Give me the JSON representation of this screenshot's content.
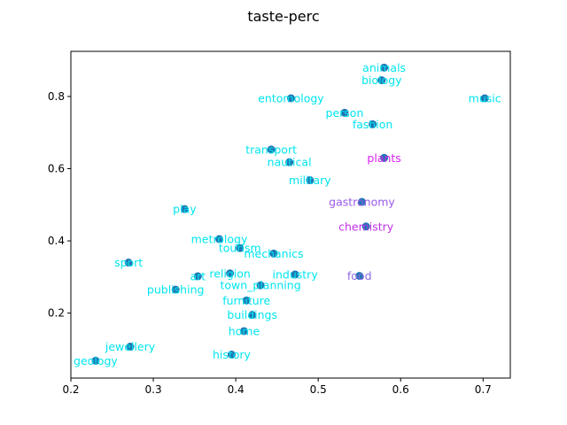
{
  "chart_data": {
    "type": "scatter",
    "title": "taste-perc",
    "xlabel": "",
    "ylabel": "",
    "xlim": [
      0.2,
      0.733
    ],
    "ylim": [
      0.02,
      0.925
    ],
    "xticks": [
      {
        "value": 0.2,
        "label": "0.2"
      },
      {
        "value": 0.3,
        "label": "0.3"
      },
      {
        "value": 0.4,
        "label": "0.4"
      },
      {
        "value": 0.5,
        "label": "0.5"
      },
      {
        "value": 0.6,
        "label": "0.6"
      },
      {
        "value": 0.7,
        "label": "0.7"
      }
    ],
    "yticks": [
      {
        "value": 0.2,
        "label": "0.2"
      },
      {
        "value": 0.4,
        "label": "0.4"
      },
      {
        "value": 0.6,
        "label": "0.6"
      },
      {
        "value": 0.8,
        "label": "0.8"
      }
    ],
    "grid": false,
    "marker_color": "#1f77b4",
    "points": [
      {
        "label": "animals",
        "x": 0.58,
        "y": 0.88,
        "color": "#00e5ee"
      },
      {
        "label": "biology",
        "x": 0.577,
        "y": 0.845,
        "color": "#00e5ee"
      },
      {
        "label": "music",
        "x": 0.702,
        "y": 0.795,
        "color": "#00e5ee"
      },
      {
        "label": "entomology",
        "x": 0.467,
        "y": 0.795,
        "color": "#00e5ee"
      },
      {
        "label": "person",
        "x": 0.532,
        "y": 0.755,
        "color": "#00e5ee"
      },
      {
        "label": "fashion",
        "x": 0.566,
        "y": 0.723,
        "color": "#00e5ee"
      },
      {
        "label": "transport",
        "x": 0.443,
        "y": 0.653,
        "color": "#00e5ee"
      },
      {
        "label": "plants",
        "x": 0.58,
        "y": 0.63,
        "color": "#d620f0"
      },
      {
        "label": "nautical",
        "x": 0.465,
        "y": 0.618,
        "color": "#00e5ee"
      },
      {
        "label": "military",
        "x": 0.49,
        "y": 0.568,
        "color": "#00e5ee"
      },
      {
        "label": "gastronomy",
        "x": 0.553,
        "y": 0.508,
        "color": "#9a5ae8"
      },
      {
        "label": "play",
        "x": 0.338,
        "y": 0.488,
        "color": "#00e5ee"
      },
      {
        "label": "chemistry",
        "x": 0.558,
        "y": 0.44,
        "color": "#c030e8"
      },
      {
        "label": "metrology",
        "x": 0.38,
        "y": 0.405,
        "color": "#00e5ee"
      },
      {
        "label": "tourism",
        "x": 0.405,
        "y": 0.38,
        "color": "#00e5ee"
      },
      {
        "label": "mechanics",
        "x": 0.446,
        "y": 0.365,
        "color": "#00e5ee"
      },
      {
        "label": "sport",
        "x": 0.27,
        "y": 0.34,
        "color": "#00e5ee"
      },
      {
        "label": "religion",
        "x": 0.393,
        "y": 0.31,
        "color": "#00e5ee"
      },
      {
        "label": "industry",
        "x": 0.472,
        "y": 0.307,
        "color": "#00e5ee"
      },
      {
        "label": "food",
        "x": 0.55,
        "y": 0.303,
        "color": "#8f6ae0"
      },
      {
        "label": "art",
        "x": 0.354,
        "y": 0.302,
        "color": "#00e5ee"
      },
      {
        "label": "town_planning",
        "x": 0.43,
        "y": 0.277,
        "color": "#00e5ee"
      },
      {
        "label": "publishing",
        "x": 0.327,
        "y": 0.265,
        "color": "#00e5ee"
      },
      {
        "label": "furniture",
        "x": 0.413,
        "y": 0.235,
        "color": "#00e5ee"
      },
      {
        "label": "buildings",
        "x": 0.42,
        "y": 0.195,
        "color": "#00e5ee"
      },
      {
        "label": "home",
        "x": 0.41,
        "y": 0.15,
        "color": "#00e5ee"
      },
      {
        "label": "jewellery",
        "x": 0.272,
        "y": 0.107,
        "color": "#00e5ee"
      },
      {
        "label": "history",
        "x": 0.395,
        "y": 0.085,
        "color": "#00e5ee"
      },
      {
        "label": "geology",
        "x": 0.23,
        "y": 0.068,
        "color": "#00e5ee"
      }
    ]
  }
}
